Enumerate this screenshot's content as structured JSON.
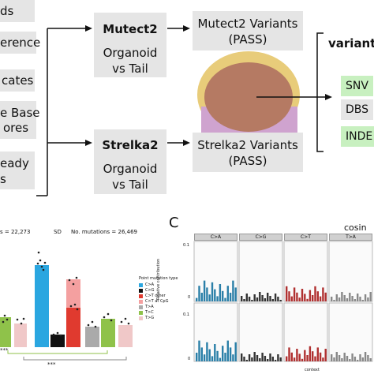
{
  "flow": {
    "left_inputs": [
      "ds",
      "erence",
      "cates",
      "e Base",
      "ores",
      "eady",
      "s"
    ],
    "mutect": {
      "title": "Mutect2",
      "subtitle_1": "Organoid",
      "subtitle_2": "vs Tail"
    },
    "strelka": {
      "title": "Strelka2",
      "subtitle_1": "Organoid",
      "subtitle_2": "vs Tail"
    },
    "mutect_variants": {
      "line1": "Mutect2 Variants",
      "line2": "(PASS)"
    },
    "strelka_variants": {
      "line1": "Strelka2 Variants",
      "line2": "(PASS)"
    },
    "output": {
      "title": "variant",
      "items": [
        "SNV",
        "DBS",
        "INDE"
      ]
    },
    "colors": {
      "mutect_circle": "#e8cc7a",
      "strelka_circle": "#cfa3cf",
      "overlap": "#b57a63",
      "chip_green": "#c8f0c0",
      "box_grey": "#e5e5e5"
    }
  },
  "panel_b": {
    "stat_left": "s = 22,273",
    "sd_label": "SD",
    "stat_right": "No. mutations = 26,469",
    "legend_title": "Point mutation type",
    "legend": [
      {
        "label": "C>A",
        "color": "#2aa6e0"
      },
      {
        "label": "C>G",
        "color": "#111111"
      },
      {
        "label": "C>T other",
        "color": "#e03a2f"
      },
      {
        "label": "C>T at CpG",
        "color": "#f4a0a0"
      },
      {
        "label": "T>A",
        "color": "#aaaaaa"
      },
      {
        "label": "T>C",
        "color": "#8fc24a"
      },
      {
        "label": "T>G",
        "color": "#f0c8c8"
      }
    ],
    "sig_left": "***",
    "sig_right": "***"
  },
  "panel_c": {
    "letter": "C",
    "title": "cosin",
    "facets": [
      "C>A",
      "C>G",
      "C>T",
      "T>A"
    ],
    "y_axis_label": "Relative contribution",
    "x_axis_label": "context",
    "ticks_top": [
      "0.1",
      "0"
    ],
    "ticks_bottom": [
      "0.1",
      "0"
    ],
    "facet_colors": [
      "#2a7fa8",
      "#333333",
      "#b03030",
      "#888888"
    ]
  }
}
